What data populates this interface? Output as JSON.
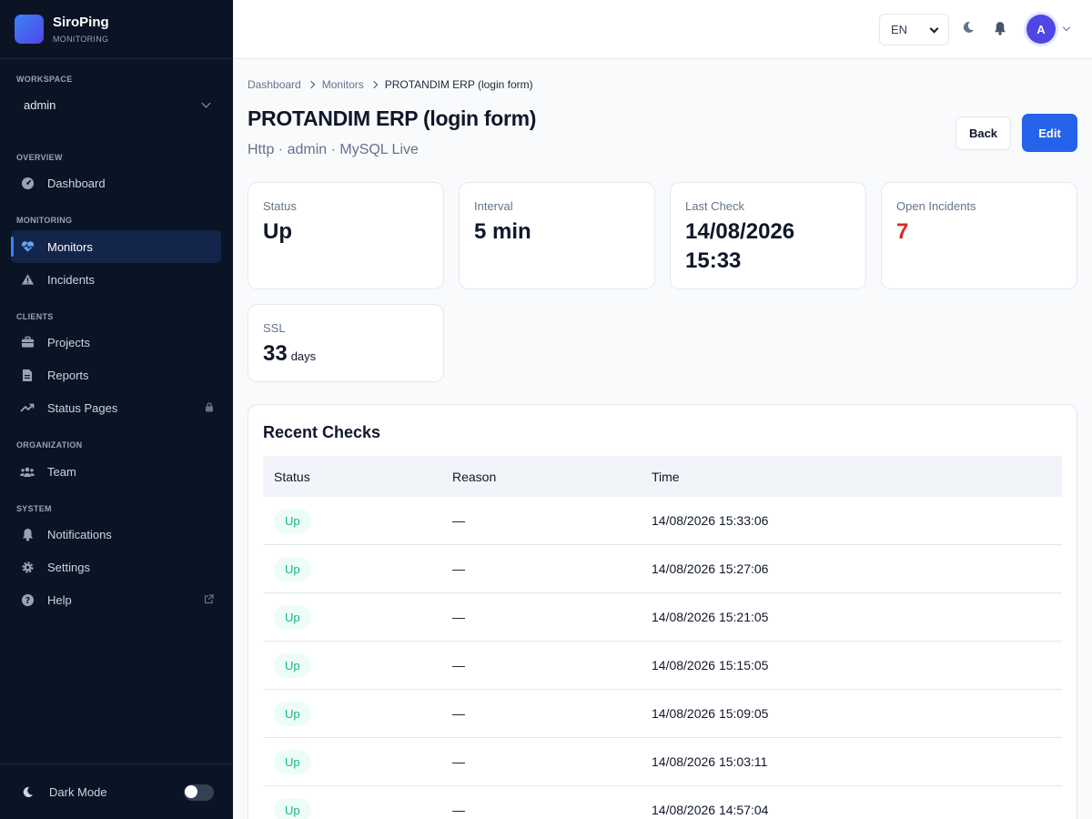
{
  "brand": {
    "name": "SiroPing",
    "sub": "MONITORING"
  },
  "sidebar": {
    "workspace_label": "WORKSPACE",
    "workspace_value": "admin",
    "sections": {
      "overview": "OVERVIEW",
      "monitoring": "MONITORING",
      "clients": "CLIENTS",
      "organization": "ORGANIZATION",
      "system": "SYSTEM"
    },
    "items": {
      "dashboard": "Dashboard",
      "monitors": "Monitors",
      "incidents": "Incidents",
      "projects": "Projects",
      "reports": "Reports",
      "status_pages": "Status Pages",
      "team": "Team",
      "notifications": "Notifications",
      "settings": "Settings",
      "help": "Help"
    },
    "dark_mode_label": "Dark Mode",
    "dark_mode_on": false
  },
  "topbar": {
    "language": "EN",
    "avatar_initial": "A"
  },
  "breadcrumb": [
    "Dashboard",
    "Monitors",
    "PROTANDIM ERP (login form)"
  ],
  "page": {
    "title": "PROTANDIM ERP (login form)",
    "subtitle": "Http · admin  · MySQL Live",
    "back_label": "Back",
    "edit_label": "Edit"
  },
  "stats": {
    "status": {
      "label": "Status",
      "value": "Up"
    },
    "interval": {
      "label": "Interval",
      "value": "5 min"
    },
    "last_check": {
      "label": "Last Check",
      "date": "14/08/2026",
      "time": "15:33"
    },
    "open_incidents": {
      "label": "Open Incidents",
      "value": "7"
    },
    "ssl": {
      "label": "SSL",
      "value": "33",
      "unit": "days"
    }
  },
  "checks": {
    "title": "Recent Checks",
    "columns": {
      "status": "Status",
      "reason": "Reason",
      "time": "Time"
    },
    "rows": [
      {
        "status": "Up",
        "reason": "—",
        "time": "14/08/2026 15:33:06"
      },
      {
        "status": "Up",
        "reason": "—",
        "time": "14/08/2026 15:27:06"
      },
      {
        "status": "Up",
        "reason": "—",
        "time": "14/08/2026 15:21:05"
      },
      {
        "status": "Up",
        "reason": "—",
        "time": "14/08/2026 15:15:05"
      },
      {
        "status": "Up",
        "reason": "—",
        "time": "14/08/2026 15:09:05"
      },
      {
        "status": "Up",
        "reason": "—",
        "time": "14/08/2026 15:03:11"
      },
      {
        "status": "Up",
        "reason": "—",
        "time": "14/08/2026 14:57:04"
      }
    ]
  },
  "colors": {
    "accent": "#2563eb",
    "sidebar_bg": "#0b1424",
    "danger": "#dc2626",
    "success": "#10b981"
  }
}
